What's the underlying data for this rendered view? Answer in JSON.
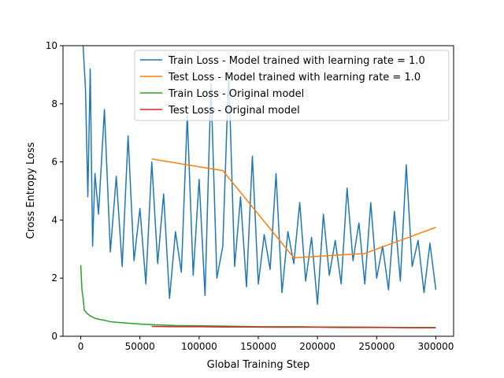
{
  "chart_data": {
    "type": "line",
    "title": "",
    "xlabel": "Global Training Step",
    "ylabel": "Cross Entropy Loss",
    "xlim": [
      -15000,
      315000
    ],
    "ylim": [
      0,
      10
    ],
    "xticks": [
      0,
      50000,
      100000,
      150000,
      200000,
      250000,
      300000
    ],
    "xtick_labels": [
      "0",
      "50000",
      "100000",
      "150000",
      "200000",
      "250000",
      "300000"
    ],
    "yticks": [
      0,
      2,
      4,
      6,
      8,
      10
    ],
    "ytick_labels": [
      "0",
      "2",
      "4",
      "6",
      "8",
      "10"
    ],
    "grid": false,
    "legend_position": "top-right",
    "series": [
      {
        "name": "Train Loss - Model trained with learning rate = 1.0",
        "color": "#1f77b4",
        "x": [
          2000,
          4000,
          6000,
          8000,
          10000,
          12000,
          15000,
          20000,
          25000,
          30000,
          35000,
          40000,
          45000,
          50000,
          55000,
          60000,
          65000,
          70000,
          75000,
          80000,
          85000,
          90000,
          95000,
          100000,
          105000,
          110000,
          115000,
          120000,
          125000,
          130000,
          135000,
          140000,
          145000,
          150000,
          155000,
          160000,
          165000,
          170000,
          175000,
          180000,
          185000,
          190000,
          195000,
          200000,
          205000,
          210000,
          215000,
          220000,
          225000,
          230000,
          235000,
          240000,
          245000,
          250000,
          255000,
          260000,
          265000,
          270000,
          275000,
          280000,
          285000,
          290000,
          295000,
          300000
        ],
        "y": [
          10.0,
          8.5,
          4.8,
          9.2,
          3.1,
          5.6,
          4.2,
          7.8,
          2.9,
          5.5,
          2.4,
          6.9,
          2.6,
          4.4,
          1.8,
          6.0,
          2.5,
          4.9,
          1.3,
          3.6,
          2.2,
          7.6,
          2.1,
          5.4,
          1.4,
          8.7,
          2.0,
          3.1,
          9.1,
          2.4,
          4.8,
          1.7,
          6.2,
          1.8,
          3.5,
          2.3,
          5.6,
          1.5,
          3.6,
          2.5,
          4.6,
          1.9,
          3.4,
          1.1,
          4.2,
          2.1,
          3.3,
          1.8,
          5.1,
          2.6,
          3.9,
          1.8,
          4.6,
          2.0,
          3.1,
          1.6,
          4.3,
          1.9,
          5.9,
          2.4,
          3.3,
          1.5,
          3.2,
          1.6
        ],
        "values": [
          10.0,
          8.5,
          4.8,
          9.2,
          3.1,
          5.6,
          4.2,
          7.8,
          2.9,
          5.5,
          2.4,
          6.9,
          2.6,
          4.4,
          1.8,
          6.0,
          2.5,
          4.9,
          1.3,
          3.6,
          2.2,
          7.6,
          2.1,
          5.4,
          1.4,
          8.7,
          2.0,
          3.1,
          9.1,
          2.4,
          4.8,
          1.7,
          6.2,
          1.8,
          3.5,
          2.3,
          5.6,
          1.5,
          3.6,
          2.5,
          4.6,
          1.9,
          3.4,
          1.1,
          4.2,
          2.1,
          3.3,
          1.8,
          5.1,
          2.6,
          3.9,
          1.8,
          4.6,
          2.0,
          3.1,
          1.6,
          4.3,
          1.9,
          5.9,
          2.4,
          3.3,
          1.5,
          3.2,
          1.6
        ]
      },
      {
        "name": "Test Loss - Model trained with learning rate = 1.0",
        "color": "#ff7f0e",
        "x": [
          60000,
          120000,
          180000,
          240000,
          300000
        ],
        "y": [
          6.1,
          5.7,
          2.7,
          2.85,
          3.75
        ],
        "values": [
          6.1,
          5.7,
          2.7,
          2.85,
          3.75
        ]
      },
      {
        "name": "Train Loss - Original model",
        "color": "#2ca02c",
        "x": [
          0,
          1000,
          2000,
          3000,
          5000,
          8000,
          12000,
          16000,
          20000,
          25000,
          30000,
          40000,
          50000,
          60000,
          80000,
          100000,
          120000,
          150000,
          180000,
          200000,
          220000,
          250000,
          270000,
          300000
        ],
        "y": [
          2.45,
          1.6,
          1.3,
          0.9,
          0.8,
          0.7,
          0.62,
          0.58,
          0.55,
          0.5,
          0.48,
          0.45,
          0.42,
          0.4,
          0.37,
          0.36,
          0.35,
          0.33,
          0.33,
          0.32,
          0.32,
          0.31,
          0.3,
          0.3
        ],
        "values": [
          2.45,
          1.6,
          1.3,
          0.9,
          0.8,
          0.7,
          0.62,
          0.58,
          0.55,
          0.5,
          0.48,
          0.45,
          0.42,
          0.4,
          0.37,
          0.36,
          0.35,
          0.33,
          0.33,
          0.32,
          0.32,
          0.31,
          0.3,
          0.3
        ]
      },
      {
        "name": "Test Loss - Original model",
        "color": "#d62728",
        "x": [
          60000,
          80000,
          100000,
          120000,
          140000,
          160000,
          180000,
          200000,
          220000,
          240000,
          260000,
          280000,
          300000
        ],
        "y": [
          0.34,
          0.33,
          0.33,
          0.32,
          0.32,
          0.31,
          0.31,
          0.31,
          0.3,
          0.3,
          0.3,
          0.29,
          0.29
        ],
        "values": [
          0.34,
          0.33,
          0.33,
          0.32,
          0.32,
          0.31,
          0.31,
          0.31,
          0.3,
          0.3,
          0.3,
          0.29,
          0.29
        ]
      }
    ]
  }
}
